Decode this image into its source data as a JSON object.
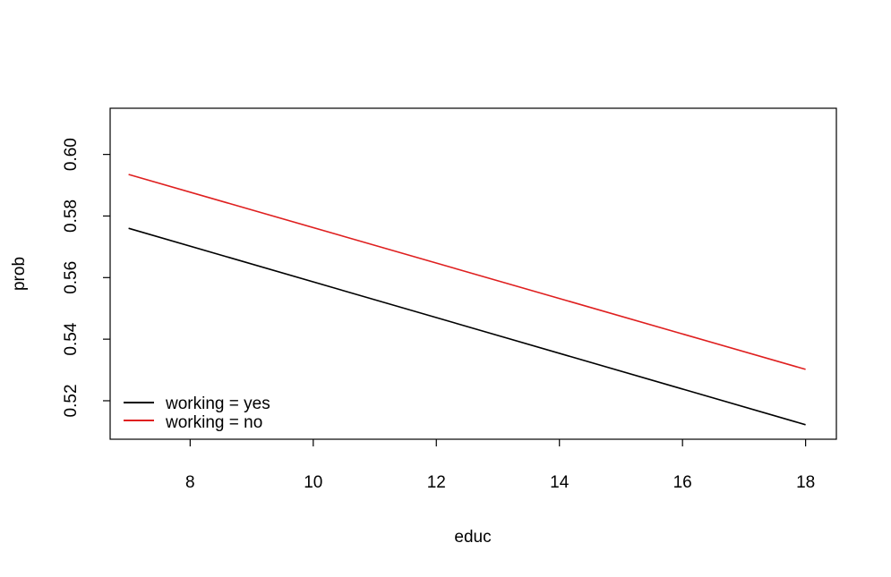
{
  "chart_data": {
    "type": "line",
    "title": "",
    "xlabel": "educ",
    "ylabel": "prob",
    "xlim": [
      6.7,
      18.5
    ],
    "ylim": [
      0.5075,
      0.615
    ],
    "x_ticks": [
      8,
      10,
      12,
      14,
      16,
      18
    ],
    "x_tick_labels": [
      "8",
      "10",
      "12",
      "14",
      "16",
      "18"
    ],
    "y_ticks": [
      0.52,
      0.54,
      0.56,
      0.58,
      0.6
    ],
    "y_tick_labels": [
      "0.52",
      "0.54",
      "0.56",
      "0.58",
      "0.60"
    ],
    "grid": false,
    "legend_position": "bottom-left",
    "series": [
      {
        "name": "working = yes",
        "color": "#000000",
        "x": [
          7,
          18
        ],
        "y": [
          0.576,
          0.5122
        ]
      },
      {
        "name": "working = no",
        "color": "#DF1F1F",
        "x": [
          7,
          18
        ],
        "y": [
          0.5935,
          0.5302
        ]
      }
    ]
  }
}
